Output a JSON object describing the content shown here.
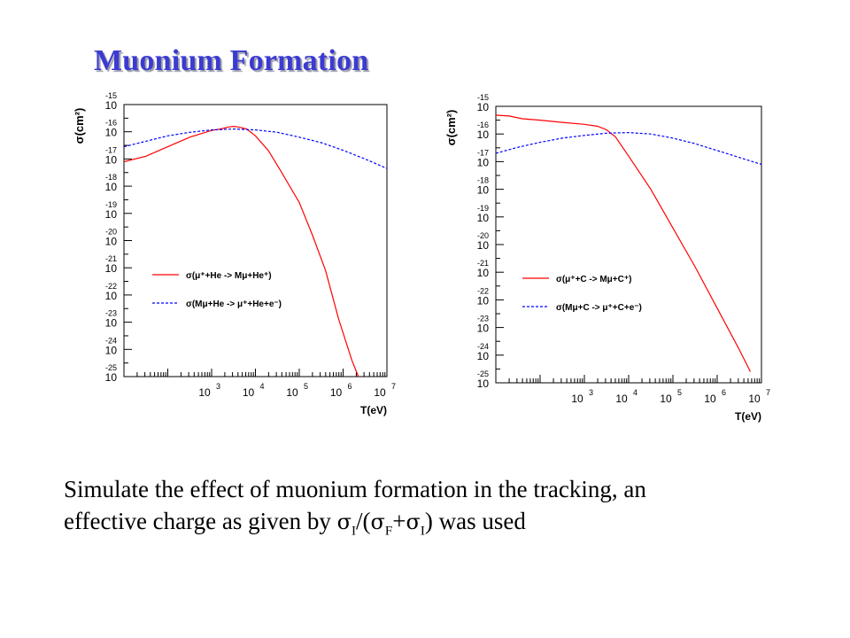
{
  "page": {
    "title": "Muonium Formation",
    "caption_line1": "Simulate the effect of muonium  formation in the tracking, an",
    "caption_line2_pre": "effective charge as given by ",
    "caption_formula": {
      "sigma": "σ",
      "sub_I": "I",
      "slash": "/(",
      "sub_F": "F",
      "plus": "+",
      "close": ")"
    },
    "caption_line2_post": "  was used"
  },
  "chart_data": [
    {
      "type": "line",
      "ylabel": "σ(cm²)",
      "xlabel": "T(eV)",
      "x_log_range": [
        1,
        7
      ],
      "y_log_range": [
        -25,
        -15
      ],
      "x_tick_labels": [
        {
          "base": "10",
          "exp": "3"
        },
        {
          "base": "10",
          "exp": "4"
        },
        {
          "base": "10",
          "exp": "5"
        },
        {
          "base": "10",
          "exp": "6"
        },
        {
          "base": "10",
          "exp": "7"
        }
      ],
      "y_tick_labels": [
        {
          "base": "10",
          "exp": "-15"
        },
        {
          "base": "10",
          "exp": "-16"
        },
        {
          "base": "10",
          "exp": "-17"
        },
        {
          "base": "10",
          "exp": "-18"
        },
        {
          "base": "10",
          "exp": "-19"
        },
        {
          "base": "10",
          "exp": "-20"
        },
        {
          "base": "10",
          "exp": "-21"
        },
        {
          "base": "10",
          "exp": "-22"
        },
        {
          "base": "10",
          "exp": "-23"
        },
        {
          "base": "10",
          "exp": "-24"
        },
        {
          "base": "10",
          "exp": "-25"
        }
      ],
      "legend": [
        {
          "label": "σ(μ⁺+He -> Mμ+He⁺)",
          "color": "#ff0000",
          "style": "solid"
        },
        {
          "label": "σ(Mμ+He -> μ⁺+He+e⁻)",
          "color": "#0000ff",
          "style": "dashed"
        }
      ],
      "series": [
        {
          "color": "#ff0000",
          "style": "solid",
          "points": [
            [
              1.0,
              -17.1
            ],
            [
              1.5,
              -16.9
            ],
            [
              2.0,
              -16.55
            ],
            [
              2.5,
              -16.2
            ],
            [
              3.0,
              -15.95
            ],
            [
              3.2,
              -15.9
            ],
            [
              3.4,
              -15.82
            ],
            [
              3.5,
              -15.8
            ],
            [
              3.6,
              -15.82
            ],
            [
              3.8,
              -15.9
            ],
            [
              4.0,
              -16.15
            ],
            [
              4.3,
              -16.7
            ],
            [
              4.6,
              -17.5
            ],
            [
              5.0,
              -18.6
            ],
            [
              5.3,
              -19.8
            ],
            [
              5.6,
              -21.1
            ],
            [
              5.9,
              -22.9
            ],
            [
              6.2,
              -24.4
            ],
            [
              6.35,
              -25.0
            ]
          ]
        },
        {
          "color": "#0000ff",
          "style": "dashed",
          "points": [
            [
              1.0,
              -16.55
            ],
            [
              1.5,
              -16.35
            ],
            [
              2.0,
              -16.15
            ],
            [
              2.5,
              -16.02
            ],
            [
              3.0,
              -15.93
            ],
            [
              3.5,
              -15.9
            ],
            [
              4.0,
              -15.93
            ],
            [
              4.5,
              -16.02
            ],
            [
              5.0,
              -16.2
            ],
            [
              5.5,
              -16.4
            ],
            [
              6.0,
              -16.68
            ],
            [
              6.5,
              -17.0
            ],
            [
              7.0,
              -17.35
            ]
          ]
        }
      ]
    },
    {
      "type": "line",
      "ylabel": "σ(cm²)",
      "xlabel": "T(eV)",
      "x_log_range": [
        1,
        7
      ],
      "y_log_range": [
        -25,
        -15
      ],
      "x_tick_labels": [
        {
          "base": "10",
          "exp": "3"
        },
        {
          "base": "10",
          "exp": "4"
        },
        {
          "base": "10",
          "exp": "5"
        },
        {
          "base": "10",
          "exp": "6"
        },
        {
          "base": "10",
          "exp": "7"
        }
      ],
      "y_tick_labels": [
        {
          "base": "10",
          "exp": "-15"
        },
        {
          "base": "10",
          "exp": "-16"
        },
        {
          "base": "10",
          "exp": "-17"
        },
        {
          "base": "10",
          "exp": "-18"
        },
        {
          "base": "10",
          "exp": "-19"
        },
        {
          "base": "10",
          "exp": "-20"
        },
        {
          "base": "10",
          "exp": "-21"
        },
        {
          "base": "10",
          "exp": "-22"
        },
        {
          "base": "10",
          "exp": "-23"
        },
        {
          "base": "10",
          "exp": "-24"
        },
        {
          "base": "10",
          "exp": "-25"
        }
      ],
      "legend": [
        {
          "label": "σ(μ⁺+C -> Mμ+C⁺)",
          "color": "#ff0000",
          "style": "solid"
        },
        {
          "label": "σ(Mμ+C -> μ⁺+C+e⁻)",
          "color": "#0000ff",
          "style": "dashed"
        }
      ],
      "series": [
        {
          "color": "#ff0000",
          "style": "solid",
          "points": [
            [
              1.0,
              -15.32
            ],
            [
              1.3,
              -15.35
            ],
            [
              1.6,
              -15.45
            ],
            [
              2.0,
              -15.5
            ],
            [
              2.5,
              -15.58
            ],
            [
              3.0,
              -15.65
            ],
            [
              3.3,
              -15.72
            ],
            [
              3.5,
              -15.85
            ],
            [
              3.7,
              -16.1
            ],
            [
              4.0,
              -16.8
            ],
            [
              4.5,
              -18.0
            ],
            [
              5.0,
              -19.4
            ],
            [
              5.5,
              -20.8
            ],
            [
              6.0,
              -22.3
            ],
            [
              6.5,
              -23.8
            ],
            [
              6.75,
              -24.6
            ]
          ]
        },
        {
          "color": "#0000ff",
          "style": "dashed",
          "points": [
            [
              1.0,
              -16.7
            ],
            [
              1.5,
              -16.48
            ],
            [
              2.0,
              -16.3
            ],
            [
              2.5,
              -16.15
            ],
            [
              3.0,
              -16.05
            ],
            [
              3.5,
              -15.97
            ],
            [
              4.0,
              -15.95
            ],
            [
              4.5,
              -16.0
            ],
            [
              5.0,
              -16.15
            ],
            [
              5.5,
              -16.35
            ],
            [
              6.0,
              -16.6
            ],
            [
              6.5,
              -16.85
            ],
            [
              7.0,
              -17.1
            ]
          ]
        }
      ]
    }
  ]
}
